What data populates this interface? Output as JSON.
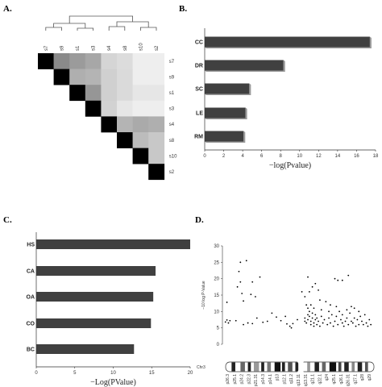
{
  "panels": {
    "a": {
      "letter": "A."
    },
    "b": {
      "letter": "B."
    },
    "c": {
      "letter": "C."
    },
    "d": {
      "letter": "D."
    }
  },
  "colors": {
    "bar": "#404040",
    "axis": "#333333",
    "point": "#000000"
  },
  "chart_data": [
    {
      "id": "A",
      "type": "heatmap",
      "labels": [
        "s7",
        "s9",
        "s1",
        "s3",
        "s4",
        "s8",
        "s10",
        "s2"
      ],
      "values": [
        [
          1.0,
          0.45,
          0.38,
          0.33,
          0.15,
          0.12,
          0.05,
          0.05
        ],
        [
          null,
          1.0,
          0.3,
          0.28,
          0.17,
          0.13,
          0.05,
          0.05
        ],
        [
          null,
          null,
          1.0,
          0.4,
          0.17,
          0.13,
          0.08,
          0.08
        ],
        [
          null,
          null,
          null,
          1.0,
          0.16,
          0.08,
          0.05,
          0.05
        ],
        [
          null,
          null,
          null,
          null,
          1.0,
          0.28,
          0.32,
          0.3
        ],
        [
          null,
          null,
          null,
          null,
          null,
          1.0,
          0.25,
          0.2
        ],
        [
          null,
          null,
          null,
          null,
          null,
          null,
          1.0,
          0.2
        ],
        [
          null,
          null,
          null,
          null,
          null,
          null,
          null,
          1.0
        ]
      ],
      "dendrogram": true
    },
    {
      "id": "B",
      "type": "bar",
      "orientation": "horizontal",
      "categories": [
        "CC",
        "DR",
        "SC",
        "LE",
        "RM"
      ],
      "values": [
        17.4,
        8.3,
        4.7,
        4.3,
        4.1
      ],
      "xlabel": "−log(Pvalue)",
      "xlim": [
        0,
        18
      ],
      "xticks": [
        "0",
        "2",
        "4",
        "6",
        "8",
        "10",
        "12",
        "14",
        "16",
        "18"
      ]
    },
    {
      "id": "C",
      "type": "bar",
      "orientation": "horizontal",
      "categories": [
        "HS",
        "CA",
        "OA",
        "CO",
        "BC"
      ],
      "values": [
        20,
        15.5,
        15.2,
        14.9,
        12.7
      ],
      "xlabel": "−Log(PValue)",
      "xlim": [
        0,
        20
      ],
      "xticks": [
        "0",
        "5",
        "10",
        "15",
        "20"
      ]
    },
    {
      "id": "D",
      "type": "scatter",
      "ylabel": "−10 log P-Value",
      "ylim": [
        0,
        30
      ],
      "yticks": [
        "0",
        "5",
        "10",
        "15",
        "20",
        "25",
        "30"
      ],
      "xlim": [
        0,
        1
      ],
      "chromosome": "Chr3",
      "band_labels": [
        "p26.3",
        "p25.1",
        "p24.2",
        "p22.3",
        "p21.31",
        "p14.3",
        "p14.1",
        "p13",
        "p12.1",
        "q11.2",
        "q13.11",
        "q13.31",
        "q21.1",
        "q22.1",
        "q24",
        "q25.1",
        "q26.1",
        "q26.31",
        "q27.1",
        "q28",
        "q29"
      ],
      "points": [
        [
          0.02,
          6.8
        ],
        [
          0.03,
          7.4
        ],
        [
          0.04,
          6.5
        ],
        [
          0.05,
          7.2
        ],
        [
          0.03,
          12.8
        ],
        [
          0.1,
          17.5
        ],
        [
          0.11,
          22.2
        ],
        [
          0.12,
          25.0
        ],
        [
          0.12,
          19.0
        ],
        [
          0.13,
          15.5
        ],
        [
          0.14,
          13.2
        ],
        [
          0.16,
          25.5
        ],
        [
          0.19,
          15.2
        ],
        [
          0.2,
          19.0
        ],
        [
          0.22,
          14.5
        ],
        [
          0.23,
          8.0
        ],
        [
          0.25,
          20.5
        ],
        [
          0.09,
          7.2
        ],
        [
          0.14,
          6.0
        ],
        [
          0.17,
          6.5
        ],
        [
          0.2,
          6.3
        ],
        [
          0.27,
          6.7
        ],
        [
          0.3,
          7.0
        ],
        [
          0.33,
          9.5
        ],
        [
          0.36,
          8.3
        ],
        [
          0.39,
          7.2
        ],
        [
          0.42,
          8.5
        ],
        [
          0.43,
          6.2
        ],
        [
          0.45,
          5.5
        ],
        [
          0.46,
          5.0
        ],
        [
          0.47,
          6.3
        ],
        [
          0.5,
          7.5
        ],
        [
          0.53,
          16.0
        ],
        [
          0.55,
          14.5
        ],
        [
          0.56,
          12.0
        ],
        [
          0.57,
          20.5
        ],
        [
          0.58,
          16.0
        ],
        [
          0.6,
          17.5
        ],
        [
          0.62,
          18.5
        ],
        [
          0.64,
          16.5
        ],
        [
          0.65,
          13.5
        ],
        [
          0.69,
          13.0
        ],
        [
          0.72,
          12.0
        ],
        [
          0.75,
          20.0
        ],
        [
          0.77,
          19.5
        ],
        [
          0.8,
          19.5
        ],
        [
          0.84,
          21.0
        ],
        [
          0.86,
          11.5
        ],
        [
          0.55,
          8.0
        ],
        [
          0.55,
          7.0
        ],
        [
          0.56,
          6.5
        ],
        [
          0.57,
          9.0
        ],
        [
          0.57,
          7.5
        ],
        [
          0.58,
          10.0
        ],
        [
          0.58,
          8.5
        ],
        [
          0.59,
          7.0
        ],
        [
          0.59,
          6.0
        ],
        [
          0.6,
          9.5
        ],
        [
          0.6,
          8.0
        ],
        [
          0.61,
          6.5
        ],
        [
          0.61,
          5.5
        ],
        [
          0.62,
          7.5
        ],
        [
          0.62,
          9.0
        ],
        [
          0.63,
          6.0
        ],
        [
          0.63,
          8.0
        ],
        [
          0.64,
          7.0
        ],
        [
          0.65,
          5.5
        ],
        [
          0.66,
          8.5
        ],
        [
          0.67,
          6.5
        ],
        [
          0.68,
          7.5
        ],
        [
          0.7,
          6.0
        ],
        [
          0.71,
          8.0
        ],
        [
          0.72,
          6.5
        ],
        [
          0.73,
          9.0
        ],
        [
          0.74,
          5.5
        ],
        [
          0.75,
          7.0
        ],
        [
          0.76,
          8.5
        ],
        [
          0.77,
          6.0
        ],
        [
          0.78,
          10.0
        ],
        [
          0.79,
          7.5
        ],
        [
          0.8,
          6.5
        ],
        [
          0.8,
          9.0
        ],
        [
          0.81,
          5.5
        ],
        [
          0.82,
          7.0
        ],
        [
          0.83,
          8.0
        ],
        [
          0.84,
          6.0
        ],
        [
          0.85,
          9.5
        ],
        [
          0.86,
          7.0
        ],
        [
          0.87,
          6.5
        ],
        [
          0.88,
          8.0
        ],
        [
          0.89,
          5.5
        ],
        [
          0.9,
          7.5
        ],
        [
          0.91,
          6.0
        ],
        [
          0.92,
          8.5
        ],
        [
          0.93,
          7.0
        ],
        [
          0.94,
          6.0
        ],
        [
          0.95,
          9.0
        ],
        [
          0.96,
          6.5
        ],
        [
          0.97,
          5.5
        ],
        [
          0.98,
          7.5
        ],
        [
          0.99,
          6.0
        ],
        [
          0.57,
          11.0
        ],
        [
          0.59,
          12.0
        ],
        [
          0.61,
          11.0
        ],
        [
          0.66,
          10.5
        ],
        [
          0.71,
          10.0
        ],
        [
          0.76,
          11.5
        ],
        [
          0.83,
          10.5
        ],
        [
          0.88,
          11.0
        ],
        [
          0.91,
          10.0
        ]
      ]
    }
  ]
}
